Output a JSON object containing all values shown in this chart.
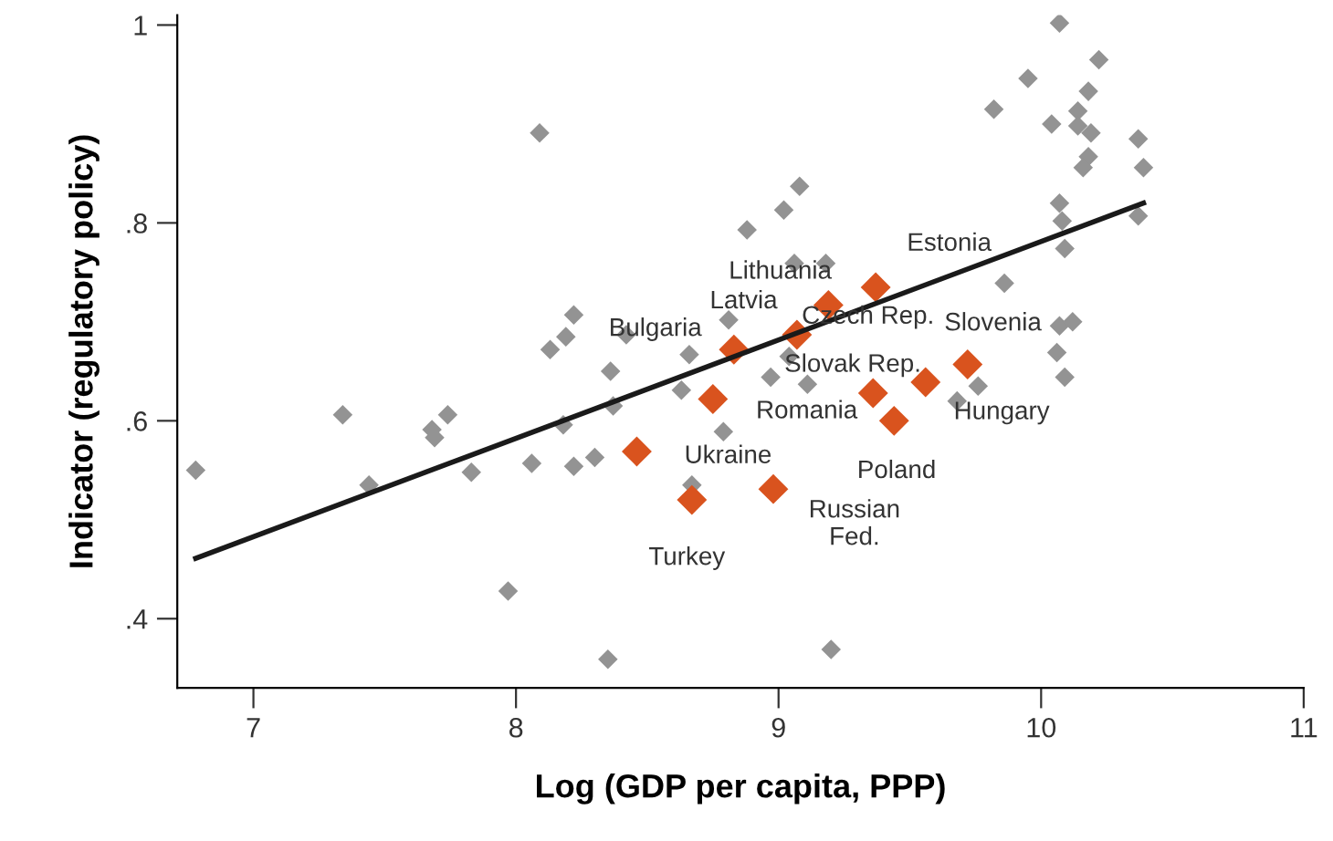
{
  "chart_data": {
    "type": "scatter",
    "xlabel": "Log (GDP per capita, PPP)",
    "ylabel": "Indicator (regulatory policy)",
    "xlim": [
      6.71,
      11.0
    ],
    "ylim": [
      0.33,
      1.01
    ],
    "xticks": [
      7,
      8,
      9,
      10,
      11
    ],
    "yticks": [
      {
        "value": 0.4,
        "label": ".4"
      },
      {
        "value": 0.6,
        "label": ".6"
      },
      {
        "value": 0.8,
        "label": ".8"
      },
      1
    ],
    "grid": false,
    "legend": false,
    "marker": "diamond",
    "series": [
      {
        "color": "#939393",
        "x": [
          6.78,
          7.34,
          7.44,
          7.67,
          7.69,
          7.68,
          7.74,
          7.83,
          7.97,
          8.06,
          8.09,
          8.13,
          8.19,
          8.18,
          8.22,
          8.22,
          8.3,
          8.35,
          8.36,
          8.37,
          8.42,
          8.63,
          8.66,
          8.67,
          8.79,
          8.81,
          8.88,
          8.97,
          9.04,
          9.02,
          9.08,
          9.06,
          9.11,
          9.18,
          9.2,
          9.68,
          9.76,
          9.82,
          9.86,
          9.95,
          10.04,
          10.07,
          10.07,
          10.08,
          10.09,
          10.06,
          10.07,
          10.12,
          10.09,
          10.14,
          10.14,
          10.18,
          10.19,
          10.22,
          10.18,
          10.16,
          10.37,
          10.39,
          10.37
        ],
        "values": [
          0.55,
          0.606,
          0.535,
          null,
          0.583,
          0.591,
          0.606,
          0.548,
          0.428,
          0.557,
          0.891,
          0.672,
          0.685,
          0.596,
          0.707,
          0.554,
          0.563,
          0.359,
          0.65,
          0.615,
          0.687,
          0.631,
          0.667,
          0.535,
          0.589,
          0.702,
          0.793,
          0.644,
          0.665,
          0.813,
          0.837,
          0.759,
          0.637,
          0.759,
          0.369,
          0.62,
          0.635,
          0.915,
          0.739,
          0.946,
          0.9,
          1.002,
          0.82,
          0.802,
          0.774,
          0.669,
          0.696,
          0.7,
          0.644,
          0.913,
          0.898,
          0.933,
          0.891,
          0.965,
          0.867,
          0.856,
          0.885,
          0.856,
          0.807
        ]
      },
      {
        "color": "#d9531e",
        "x": [
          8.46,
          8.67,
          8.75,
          8.83,
          9.07,
          9.19,
          9.37,
          8.98,
          9.36,
          9.56,
          9.72,
          9.44
        ],
        "values": [
          0.569,
          0.52,
          0.622,
          0.672,
          0.687,
          0.717,
          0.735,
          0.531,
          0.628,
          0.639,
          0.657,
          0.6
        ]
      },
      {
        "type": "line",
        "color": "#1a1a1a",
        "marker": "none",
        "x": [
          6.78,
          10.39
        ],
        "values": [
          0.461,
          0.82
        ]
      }
    ],
    "annotations": [
      {
        "text": "Estonia",
        "x": 9.37,
        "y": 0.735
      },
      {
        "text": "Lithuania",
        "x": 9.19,
        "y": 0.717
      },
      {
        "text": "Latvia",
        "x": 9.07,
        "y": 0.687
      },
      {
        "text": "Bulgaria",
        "x": 8.83,
        "y": 0.672
      },
      {
        "text": "Czech Rep.",
        "x": 9.36,
        "y": 0.628
      },
      {
        "text": "Slovak Rep.",
        "x": 9.36,
        "y": 0.628
      },
      {
        "text": "Slovenia",
        "x": 9.72,
        "y": 0.657
      },
      {
        "text": "Hungary",
        "x": 9.56,
        "y": 0.639
      },
      {
        "text": "Romania",
        "x": 8.75,
        "y": 0.622
      },
      {
        "text": "Poland",
        "x": 9.44,
        "y": 0.6
      },
      {
        "text": "Ukraine",
        "x": 8.46,
        "y": 0.569
      },
      {
        "text": "Turkey",
        "x": 8.67,
        "y": 0.52
      },
      {
        "text": "Russian\nFed.",
        "x": 8.98,
        "y": 0.531
      }
    ]
  }
}
